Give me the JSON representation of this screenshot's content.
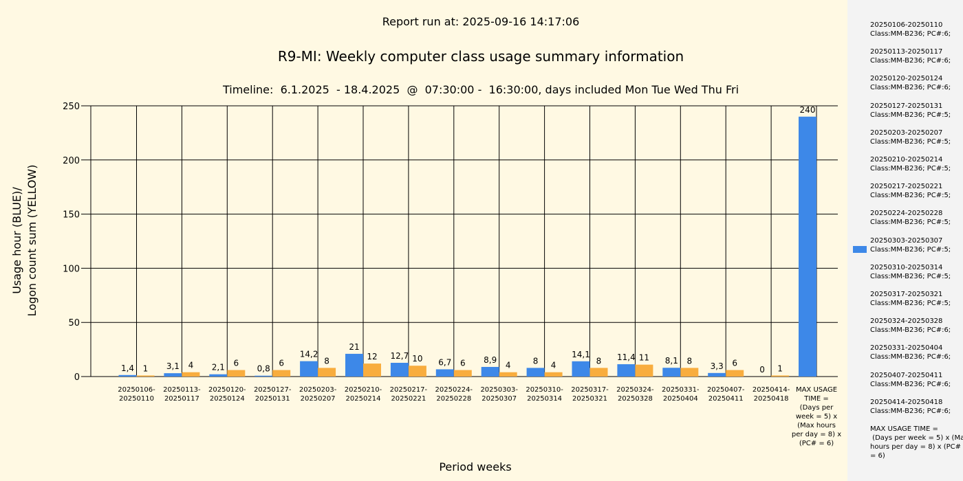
{
  "header": {
    "run_at": "Report run at: 2025-09-16 14:17:06",
    "title": "R9-MI: Weekly computer class usage summary information",
    "subtitle": "Timeline:  6.1.2025  - 18.4.2025  @  07:30:00 -  16:30:00, days included Mon Tue Wed Thu Fri"
  },
  "colors": {
    "usage": "#3d88e8",
    "logon": "#f8ad3e",
    "background": "#fff9e3",
    "legend_bg": "#f3f3f3"
  },
  "chart_data": {
    "type": "bar",
    "xlabel": "Period weeks",
    "ylabel_line1": "Usage hour (BLUE)/",
    "ylabel_line2": "Logon count sum (YELLOW)",
    "ylim": [
      0,
      250
    ],
    "yticks": [
      0,
      50,
      100,
      150,
      200,
      250
    ],
    "categories": [
      [
        "20250106-",
        "20250110"
      ],
      [
        "20250113-",
        "20250117"
      ],
      [
        "20250120-",
        "20250124"
      ],
      [
        "20250127-",
        "20250131"
      ],
      [
        "20250203-",
        "20250207"
      ],
      [
        "20250210-",
        "20250214"
      ],
      [
        "20250217-",
        "20250221"
      ],
      [
        "20250224-",
        "20250228"
      ],
      [
        "20250303-",
        "20250307"
      ],
      [
        "20250310-",
        "20250314"
      ],
      [
        "20250317-",
        "20250321"
      ],
      [
        "20250324-",
        "20250328"
      ],
      [
        "20250331-",
        "20250404"
      ],
      [
        "20250407-",
        "20250411"
      ],
      [
        "20250414-",
        "20250418"
      ],
      [
        "MAX USAGE",
        "TIME =",
        "(Days per",
        "week = 5) x",
        "(Max hours",
        "per day = 8) x",
        "(PC# = 6)"
      ]
    ],
    "series": [
      {
        "values": [
          1.4,
          3.1,
          2.1,
          0.8,
          14.2,
          21,
          12.7,
          6.7,
          8.9,
          8,
          14.1,
          11.4,
          8.1,
          3.3,
          0,
          240
        ],
        "labels": [
          "1,4",
          "3,1",
          "2,1",
          "0,8",
          "14,2",
          "21",
          "12,7",
          "6,7",
          "8,9",
          "8",
          "14,1",
          "11,4",
          "8,1",
          "3,3",
          "0",
          "240"
        ]
      },
      {
        "values": [
          1,
          4,
          6,
          6,
          8,
          12,
          10,
          6,
          4,
          4,
          8,
          11,
          8,
          6,
          1,
          null
        ],
        "labels": [
          "1",
          "4",
          "6",
          "6",
          "8",
          "12",
          "10",
          "6",
          "4",
          "4",
          "8",
          "11",
          "8",
          "6",
          "1",
          ""
        ]
      }
    ],
    "grid": true,
    "legend_position": "right"
  },
  "legend": {
    "items": [
      [
        "20250106-20250110",
        "Class:MM-B236; PC#:6;"
      ],
      [
        "20250113-20250117",
        "Class:MM-B236; PC#:6;"
      ],
      [
        "20250120-20250124",
        "Class:MM-B236; PC#:6;"
      ],
      [
        "20250127-20250131",
        "Class:MM-B236; PC#:5;"
      ],
      [
        "20250203-20250207",
        "Class:MM-B236; PC#:5;"
      ],
      [
        "20250210-20250214",
        "Class:MM-B236; PC#:5;"
      ],
      [
        "20250217-20250221",
        "Class:MM-B236; PC#:5;"
      ],
      [
        "20250224-20250228",
        "Class:MM-B236; PC#:5;"
      ],
      [
        "20250303-20250307",
        "Class:MM-B236; PC#:5;"
      ],
      [
        "20250310-20250314",
        "Class:MM-B236; PC#:5;"
      ],
      [
        "20250317-20250321",
        "Class:MM-B236; PC#:5;"
      ],
      [
        "20250324-20250328",
        "Class:MM-B236; PC#:6;"
      ],
      [
        "20250331-20250404",
        "Class:MM-B236; PC#:6;"
      ],
      [
        "20250407-20250411",
        "Class:MM-B236; PC#:6;"
      ],
      [
        "20250414-20250418",
        "Class:MM-B236; PC#:6;"
      ],
      [
        "MAX USAGE TIME =",
        " (Days per week = 5) x (Max",
        "hours per day = 8) x (PC#",
        "= 6)"
      ]
    ],
    "swatch_item_index": 8
  }
}
